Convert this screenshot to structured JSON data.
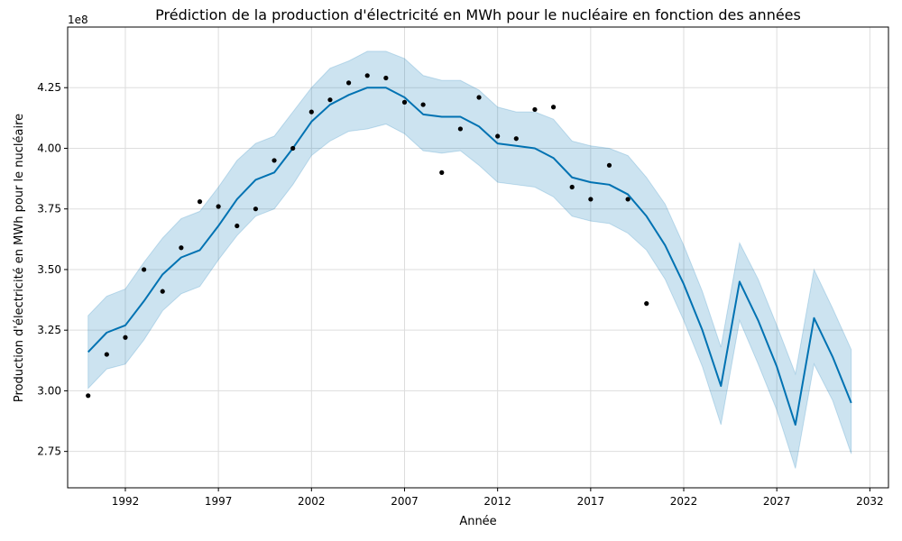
{
  "chart_data": {
    "type": "line",
    "title": "Prédiction de la production d'électricité en MWh pour le nucléaire en fonction des années",
    "xlabel": "Année",
    "ylabel": "Production d'électricité en MWh pour le nucléaire",
    "y_offset_label": "1e8",
    "xlim": [
      1988.9,
      2033.0
    ],
    "ylim": [
      2.6,
      4.5
    ],
    "grid": true,
    "x_ticks": [
      1992,
      1997,
      2002,
      2007,
      2012,
      2017,
      2022,
      2027,
      2032
    ],
    "y_ticks": [
      2.75,
      3.0,
      3.25,
      3.5,
      3.75,
      4.0,
      4.25
    ],
    "y_tick_labels": [
      "2.75",
      "3.00",
      "3.25",
      "3.50",
      "3.75",
      "4.00",
      "4.25"
    ],
    "colors": {
      "forecast_line": "#0072B2",
      "uncertainty_band": "#0072B2",
      "observed_points": "#000000",
      "grid": "#dddddd"
    },
    "series": [
      {
        "kind": "observed",
        "x": [
          1990,
          1991,
          1992,
          1993,
          1994,
          1995,
          1996,
          1997,
          1998,
          1999,
          2000,
          2001,
          2002,
          2003,
          2004,
          2005,
          2006,
          2007,
          2008,
          2009,
          2010,
          2011,
          2012,
          2013,
          2014,
          2015,
          2016,
          2017,
          2018,
          2019,
          2020
        ],
        "values": [
          2.98,
          3.15,
          3.22,
          3.5,
          3.41,
          3.59,
          3.78,
          3.76,
          3.68,
          3.75,
          3.95,
          4.0,
          4.15,
          4.2,
          4.27,
          4.3,
          4.29,
          4.19,
          4.18,
          3.9,
          4.08,
          4.21,
          4.05,
          4.04,
          4.16,
          4.17,
          3.84,
          3.79,
          3.93,
          3.79,
          3.36
        ]
      },
      {
        "kind": "forecast",
        "x": [
          1990,
          1991,
          1992,
          1993,
          1994,
          1995,
          1996,
          1997,
          1998,
          1999,
          2000,
          2001,
          2002,
          2003,
          2004,
          2005,
          2006,
          2007,
          2008,
          2009,
          2010,
          2011,
          2012,
          2013,
          2014,
          2015,
          2016,
          2017,
          2018,
          2019,
          2020,
          2021,
          2022,
          2023,
          2024,
          2025,
          2026,
          2027,
          2028,
          2029,
          2030,
          2031
        ],
        "values": [
          3.16,
          3.24,
          3.27,
          3.37,
          3.48,
          3.55,
          3.58,
          3.68,
          3.79,
          3.87,
          3.9,
          4.0,
          4.11,
          4.18,
          4.22,
          4.25,
          4.25,
          4.21,
          4.14,
          4.13,
          4.13,
          4.09,
          4.02,
          4.01,
          4.0,
          3.96,
          3.88,
          3.86,
          3.85,
          3.81,
          3.72,
          3.6,
          3.44,
          3.25,
          3.02,
          3.45,
          3.29,
          3.1,
          2.86,
          3.3,
          3.14,
          2.95
        ]
      },
      {
        "kind": "band",
        "x": [
          1990,
          1991,
          1992,
          1993,
          1994,
          1995,
          1996,
          1997,
          1998,
          1999,
          2000,
          2001,
          2002,
          2003,
          2004,
          2005,
          2006,
          2007,
          2008,
          2009,
          2010,
          2011,
          2012,
          2013,
          2014,
          2015,
          2016,
          2017,
          2018,
          2019,
          2020,
          2021,
          2022,
          2023,
          2024,
          2025,
          2026,
          2027,
          2028,
          2029,
          2030,
          2031
        ],
        "upper": [
          3.31,
          3.39,
          3.42,
          3.53,
          3.63,
          3.71,
          3.74,
          3.84,
          3.95,
          4.02,
          4.05,
          4.15,
          4.25,
          4.33,
          4.36,
          4.4,
          4.4,
          4.37,
          4.3,
          4.28,
          4.28,
          4.24,
          4.17,
          4.15,
          4.15,
          4.12,
          4.03,
          4.01,
          4.0,
          3.97,
          3.88,
          3.77,
          3.6,
          3.41,
          3.18,
          3.61,
          3.46,
          3.27,
          3.07,
          3.5,
          3.34,
          3.17
        ],
        "lower": [
          3.01,
          3.09,
          3.11,
          3.21,
          3.33,
          3.4,
          3.43,
          3.54,
          3.64,
          3.72,
          3.75,
          3.85,
          3.97,
          4.03,
          4.07,
          4.08,
          4.1,
          4.06,
          3.99,
          3.98,
          3.99,
          3.93,
          3.86,
          3.85,
          3.84,
          3.8,
          3.72,
          3.7,
          3.69,
          3.65,
          3.58,
          3.46,
          3.29,
          3.1,
          2.86,
          3.29,
          3.11,
          2.92,
          2.68,
          3.11,
          2.96,
          2.74
        ]
      }
    ]
  }
}
